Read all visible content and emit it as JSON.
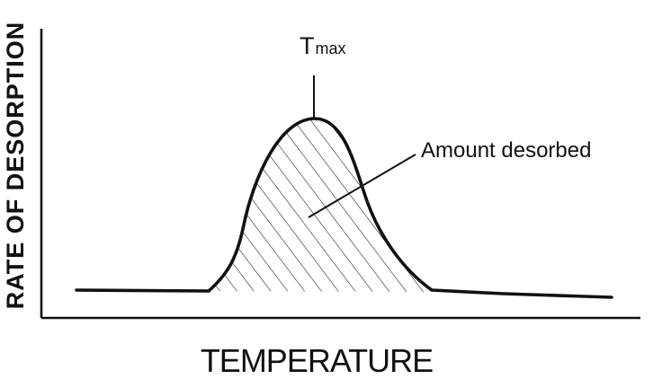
{
  "chart_data": {
    "type": "area",
    "title": "",
    "xlabel": "TEMPERATURE",
    "ylabel": "RATE OF DESORPTION",
    "x_ticks": false,
    "y_ticks": false,
    "grid": false,
    "peak_label": {
      "main": "T",
      "sub": "max"
    },
    "annotation": "Amount desorbed",
    "area_fill": "diagonal-hatch",
    "colors": {
      "line": "#111111",
      "background": "#ffffff"
    }
  }
}
